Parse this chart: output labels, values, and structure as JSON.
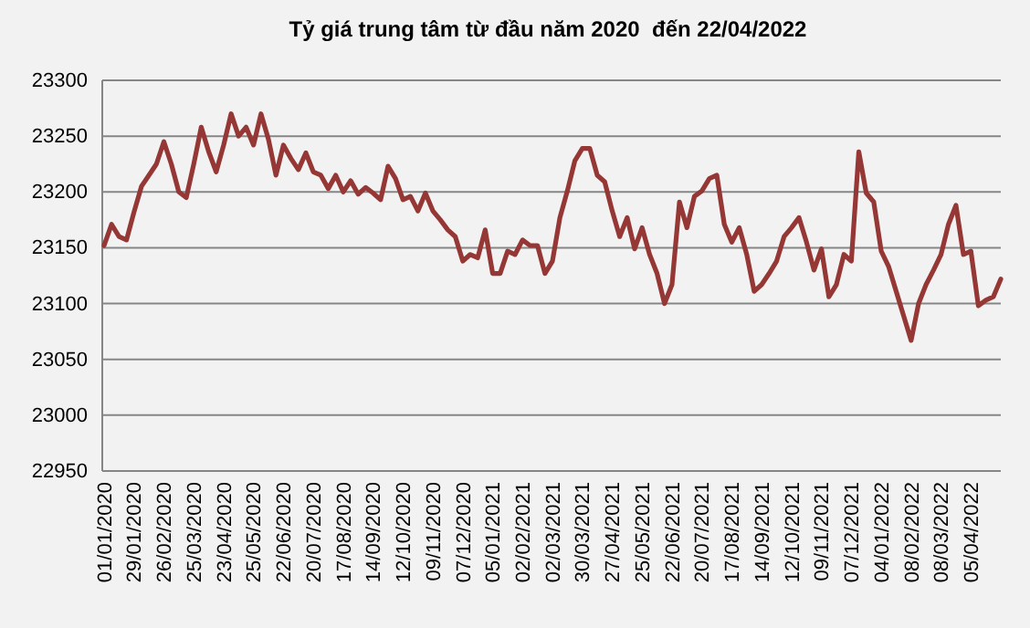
{
  "chart_data": {
    "type": "line",
    "title": "Tỷ giá trung tâm từ đầu năm 2020  đến 22/04/2022",
    "categories": [
      "01/01/2020",
      null,
      null,
      null,
      "29/01/2020",
      null,
      null,
      null,
      "26/02/2020",
      null,
      null,
      null,
      "25/03/2020",
      null,
      null,
      null,
      "23/04/2020",
      null,
      null,
      null,
      "25/05/2020",
      null,
      null,
      null,
      "22/06/2020",
      null,
      null,
      null,
      "20/07/2020",
      null,
      null,
      null,
      "17/08/2020",
      null,
      null,
      null,
      "14/09/2020",
      null,
      null,
      null,
      "12/10/2020",
      null,
      null,
      null,
      "09/11/2020",
      null,
      null,
      null,
      "07/12/2020",
      null,
      null,
      null,
      "05/01/2021",
      null,
      null,
      null,
      "02/02/2021",
      null,
      null,
      null,
      "02/03/2021",
      null,
      null,
      null,
      "30/03/2021",
      null,
      null,
      null,
      "27/04/2021",
      null,
      null,
      null,
      "25/05/2021",
      null,
      null,
      null,
      "22/06/2021",
      null,
      null,
      null,
      "20/07/2021",
      null,
      null,
      null,
      "17/08/2021",
      null,
      null,
      null,
      "14/09/2021",
      null,
      null,
      null,
      "12/10/2021",
      null,
      null,
      null,
      "09/11/2021",
      null,
      null,
      null,
      "07/12/2021",
      null,
      null,
      null,
      "04/01/2022",
      null,
      null,
      null,
      "08/02/2022",
      null,
      null,
      null,
      "08/03/2022",
      null,
      null,
      null,
      "05/04/2022",
      null,
      null,
      null,
      null
    ],
    "series": [
      {
        "color": "#953735",
        "values": [
          23152,
          23171,
          23160,
          23157,
          23182,
          23205,
          23215,
          23225,
          23245,
          23225,
          23200,
          23195,
          23225,
          23258,
          23236,
          23218,
          23242,
          23270,
          23250,
          23258,
          23242,
          23270,
          23247,
          23215,
          23242,
          23230,
          23220,
          23235,
          23218,
          23215,
          23203,
          23215,
          23200,
          23210,
          23198,
          23204,
          23199,
          23193,
          23223,
          23212,
          23193,
          23196,
          23183,
          23199,
          23183,
          23175,
          23166,
          23160,
          23138,
          23144,
          23141,
          23166,
          23127,
          23127,
          23147,
          23144,
          23157,
          23152,
          23152,
          23127,
          23138,
          23177,
          23201,
          23228,
          23239,
          23239,
          23215,
          23209,
          23183,
          23160,
          23177,
          23149,
          23168,
          23144,
          23127,
          23100,
          23117,
          23191,
          23168,
          23196,
          23201,
          23212,
          23215,
          23171,
          23155,
          23168,
          23144,
          23111,
          23117,
          23127,
          23138,
          23160,
          23168,
          23177,
          23155,
          23130,
          23149,
          23106,
          23117,
          23144,
          23138,
          23236,
          23199,
          23191,
          23147,
          23133,
          23111,
          23089,
          23067,
          23100,
          23117,
          23130,
          23144,
          23171,
          23188,
          23144,
          23147,
          23098,
          23103,
          23106,
          23122
        ]
      }
    ],
    "ylim": [
      22950,
      23300
    ],
    "yticks": [
      22950,
      23000,
      23050,
      23100,
      23150,
      23200,
      23250,
      23300
    ],
    "grid": "y",
    "line_style": "solid",
    "marker": "none"
  }
}
